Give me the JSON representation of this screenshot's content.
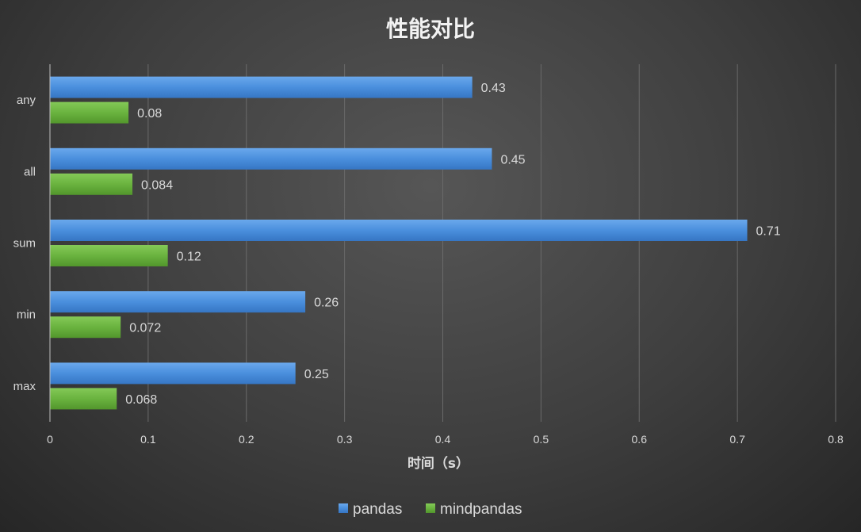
{
  "chart_data": {
    "type": "bar",
    "orientation": "horizontal",
    "title": "性能对比",
    "xlabel": "时间（s）",
    "ylabel": "",
    "xlim": [
      0,
      0.8
    ],
    "x_ticks": [
      "0",
      "0.1",
      "0.2",
      "0.3",
      "0.4",
      "0.5",
      "0.6",
      "0.7",
      "0.8"
    ],
    "categories": [
      "any",
      "all",
      "sum",
      "min",
      "max"
    ],
    "series": [
      {
        "name": "pandas",
        "color": "#4a8fdd",
        "values": [
          0.43,
          0.45,
          0.71,
          0.26,
          0.25
        ],
        "labels": [
          "0.43",
          "0.45",
          "0.71",
          "0.26",
          "0.25"
        ]
      },
      {
        "name": "mindpandas",
        "color": "#6ab33f",
        "values": [
          0.08,
          0.084,
          0.12,
          0.072,
          0.068
        ],
        "labels": [
          "0.08",
          "0.084",
          "0.12",
          "0.072",
          "0.068"
        ]
      }
    ],
    "grid": true,
    "legend_position": "bottom"
  }
}
